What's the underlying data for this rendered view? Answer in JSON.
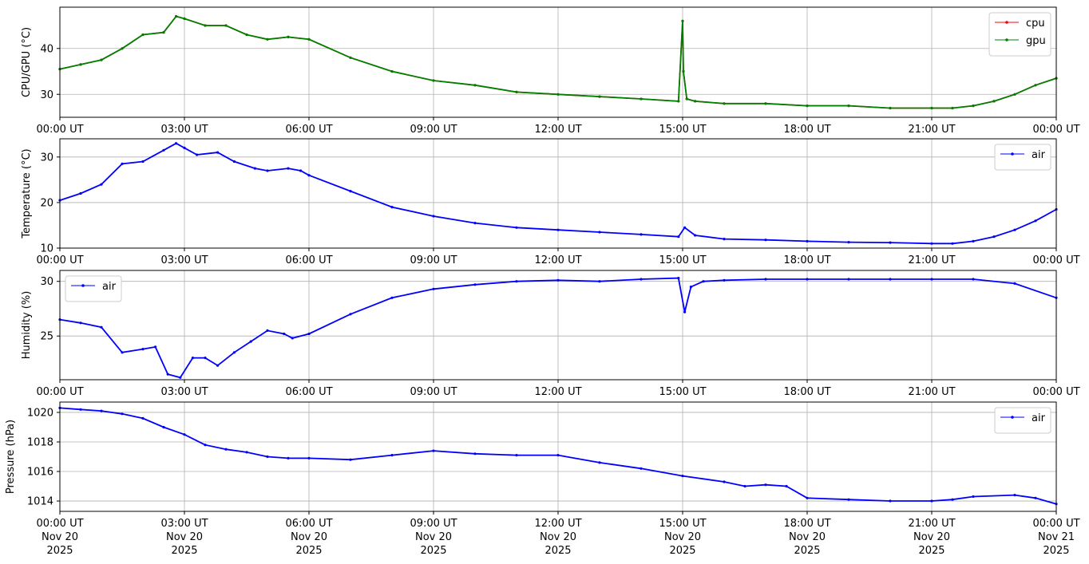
{
  "x_tick_labels": [
    "00:00 UT",
    "03:00 UT",
    "06:00 UT",
    "09:00 UT",
    "12:00 UT",
    "15:00 UT",
    "18:00 UT",
    "21:00 UT",
    "00:00 UT"
  ],
  "x_date_labels": [
    [
      "Nov 20",
      "2025"
    ],
    [
      "Nov 20",
      "2025"
    ],
    [
      "Nov 20",
      "2025"
    ],
    [
      "Nov 20",
      "2025"
    ],
    [
      "Nov 20",
      "2025"
    ],
    [
      "Nov 20",
      "2025"
    ],
    [
      "Nov 20",
      "2025"
    ],
    [
      "Nov 20",
      "2025"
    ],
    [
      "Nov 21",
      "2025"
    ]
  ],
  "colors": {
    "cpu": "#ff0000",
    "gpu": "#008000",
    "air": "#0000ff",
    "grid": "#b0b0b0"
  },
  "chart_data": [
    {
      "type": "line",
      "ylabel": "CPU/GPU (°C)",
      "xlabel": "",
      "xlim": [
        "00:00 UT",
        "00:00 UT"
      ],
      "ylim": [
        25,
        49
      ],
      "yticks": [
        30,
        40
      ],
      "grid": true,
      "legend": "top-right",
      "x_hours": [
        0,
        0.5,
        1,
        1.5,
        2,
        2.5,
        2.8,
        3,
        3.5,
        4,
        4.5,
        5,
        5.5,
        6,
        7,
        8,
        9,
        10,
        11,
        12,
        13,
        14,
        14.9,
        15.0,
        15.02,
        15.1,
        15.3,
        16,
        17,
        18,
        19,
        20,
        21,
        21.5,
        22,
        22.5,
        23,
        23.5,
        24
      ],
      "series": [
        {
          "name": "cpu",
          "values": [
            35.5,
            36.5,
            37.5,
            40,
            43,
            43.5,
            47,
            46.5,
            45,
            45,
            43,
            42,
            42.5,
            42,
            38,
            35,
            33,
            32,
            30.5,
            30,
            29.5,
            29,
            28.5,
            46,
            35,
            29,
            28.5,
            28,
            28,
            27.5,
            27.5,
            27,
            27,
            27,
            27.5,
            28.5,
            30,
            32,
            33.5
          ]
        },
        {
          "name": "gpu",
          "values": [
            35.5,
            36.5,
            37.5,
            40,
            43,
            43.5,
            47,
            46.5,
            45,
            45,
            43,
            42,
            42.5,
            42,
            38,
            35,
            33,
            32,
            30.5,
            30,
            29.5,
            29,
            28.5,
            46,
            35,
            29,
            28.5,
            28,
            28,
            27.5,
            27.5,
            27,
            27,
            27,
            27.5,
            28.5,
            30,
            32,
            33.5
          ]
        }
      ]
    },
    {
      "type": "line",
      "ylabel": "Temperature (°C)",
      "xlabel": "",
      "ylim": [
        10,
        34
      ],
      "yticks": [
        10,
        20,
        30
      ],
      "grid": true,
      "legend": "top-right",
      "x_hours": [
        0,
        0.5,
        1,
        1.5,
        2,
        2.5,
        2.8,
        3,
        3.3,
        3.8,
        4.2,
        4.7,
        5,
        5.5,
        5.8,
        6,
        7,
        8,
        9,
        10,
        11,
        12,
        13,
        14,
        14.9,
        15.05,
        15.3,
        16,
        17,
        18,
        19,
        20,
        21,
        21.5,
        22,
        22.5,
        23,
        23.5,
        24
      ],
      "series": [
        {
          "name": "air",
          "values": [
            20.5,
            22,
            24,
            28.5,
            29,
            31.5,
            33,
            32,
            30.5,
            31,
            29,
            27.5,
            27,
            27.5,
            27,
            26,
            22.5,
            19,
            17,
            15.5,
            14.5,
            14,
            13.5,
            13,
            12.5,
            14.5,
            12.8,
            12,
            11.8,
            11.5,
            11.3,
            11.2,
            11,
            11,
            11.5,
            12.5,
            14,
            16,
            18.5
          ]
        }
      ]
    },
    {
      "type": "line",
      "ylabel": "Humidity (%)",
      "xlabel": "",
      "ylim": [
        21,
        31
      ],
      "yticks": [
        25,
        30
      ],
      "grid": true,
      "legend": "top-left",
      "x_hours": [
        0,
        0.5,
        1,
        1.5,
        2,
        2.3,
        2.6,
        2.9,
        3.2,
        3.5,
        3.8,
        4.2,
        4.6,
        5,
        5.4,
        5.6,
        6,
        7,
        8,
        9,
        10,
        11,
        12,
        13,
        14,
        14.9,
        15.05,
        15.2,
        15.5,
        16,
        17,
        18,
        19,
        20,
        21,
        22,
        23,
        24
      ],
      "series": [
        {
          "name": "air",
          "values": [
            26.5,
            26.2,
            25.8,
            23.5,
            23.8,
            24,
            21.5,
            21.2,
            23,
            23,
            22.3,
            23.5,
            24.5,
            25.5,
            25.2,
            24.8,
            25.2,
            27,
            28.5,
            29.3,
            29.7,
            30,
            30.1,
            30,
            30.2,
            30.3,
            27.2,
            29.5,
            30,
            30.1,
            30.2,
            30.2,
            30.2,
            30.2,
            30.2,
            30.2,
            29.8,
            28.5
          ]
        }
      ]
    },
    {
      "type": "line",
      "ylabel": "Pressure (hPa)",
      "xlabel": "",
      "ylim": [
        1013.3,
        1020.7
      ],
      "yticks": [
        1014,
        1016,
        1018,
        1020
      ],
      "grid": true,
      "legend": "top-right",
      "x_hours": [
        0,
        0.5,
        1,
        1.5,
        2,
        2.5,
        3,
        3.5,
        4,
        4.5,
        5,
        5.5,
        6,
        7,
        8,
        9,
        10,
        11,
        12,
        13,
        14,
        15,
        16,
        16.5,
        17,
        17.5,
        18,
        19,
        20,
        21,
        21.5,
        22,
        23,
        23.5,
        24
      ],
      "series": [
        {
          "name": "air",
          "values": [
            1020.3,
            1020.2,
            1020.1,
            1019.9,
            1019.6,
            1019,
            1018.5,
            1017.8,
            1017.5,
            1017.3,
            1017,
            1016.9,
            1016.9,
            1016.8,
            1017.1,
            1017.4,
            1017.2,
            1017.1,
            1017.1,
            1016.6,
            1016.2,
            1015.7,
            1015.3,
            1015,
            1015.1,
            1015,
            1014.2,
            1014.1,
            1014,
            1014,
            1014.1,
            1014.3,
            1014.4,
            1014.2,
            1013.8
          ]
        }
      ]
    }
  ]
}
